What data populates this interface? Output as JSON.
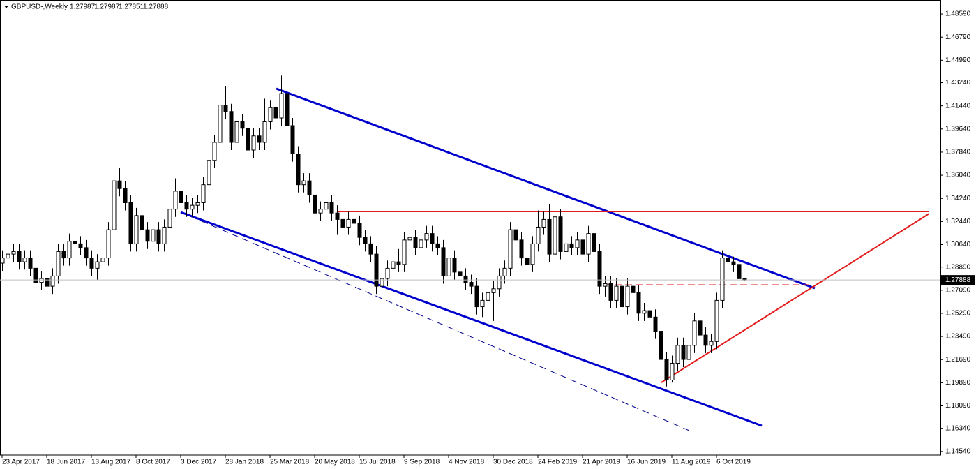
{
  "chart_data": {
    "type": "candlestick",
    "title": "GBPUSD-,Weekly",
    "categories": [
      "23 Apr 2017",
      null,
      null,
      null,
      null,
      null,
      null,
      null,
      "18 Jun 2017",
      null,
      null,
      null,
      null,
      null,
      null,
      null,
      "13 Aug 2017",
      null,
      null,
      null,
      null,
      null,
      null,
      null,
      "8 Oct 2017",
      null,
      null,
      null,
      null,
      null,
      null,
      null,
      "3 Dec 2017",
      null,
      null,
      null,
      null,
      null,
      null,
      null,
      "28 Jan 2018",
      null,
      null,
      null,
      null,
      null,
      null,
      null,
      "25 Mar 2018",
      null,
      null,
      null,
      null,
      null,
      null,
      null,
      "20 May 2018",
      null,
      null,
      null,
      null,
      null,
      null,
      null,
      "15 Jul 2018",
      null,
      null,
      null,
      null,
      null,
      null,
      null,
      "9 Sep 2018",
      null,
      null,
      null,
      null,
      null,
      null,
      null,
      "4 Nov 2018",
      null,
      null,
      null,
      null,
      null,
      null,
      null,
      "30 Dec 2018",
      null,
      null,
      null,
      null,
      null,
      null,
      null,
      "24 Feb 2019",
      null,
      null,
      null,
      null,
      null,
      null,
      null,
      "21 Apr 2019",
      null,
      null,
      null,
      null,
      null,
      null,
      null,
      "16 Jun 2019",
      null,
      null,
      null,
      null,
      null,
      null,
      null,
      "11 Aug 2019",
      null,
      null,
      null,
      null,
      null,
      null,
      null,
      "6 Oct 2019",
      null,
      null,
      null,
      null,
      null
    ],
    "open": [
      1.292,
      1.296,
      1.299,
      1.301,
      1.293,
      1.296,
      1.288,
      1.277,
      1.28,
      1.274,
      1.282,
      1.301,
      1.296,
      1.309,
      1.307,
      1.304,
      1.296,
      1.288,
      1.293,
      1.296,
      1.318,
      1.356,
      1.35,
      1.339,
      1.307,
      1.329,
      1.318,
      1.309,
      1.318,
      1.307,
      1.32,
      1.334,
      1.348,
      1.339,
      1.334,
      1.337,
      1.339,
      1.353,
      1.372,
      1.386,
      1.415,
      1.41,
      1.386,
      1.402,
      1.397,
      1.38,
      1.391,
      1.386,
      1.402,
      1.413,
      1.405,
      1.424,
      1.399,
      1.377,
      1.353,
      1.356,
      1.345,
      1.331,
      1.334,
      1.339,
      1.331,
      1.326,
      1.32,
      1.326,
      1.323,
      1.312,
      1.307,
      1.299,
      1.274,
      1.28,
      1.288,
      1.293,
      1.291,
      1.31,
      1.312,
      1.304,
      1.31,
      1.315,
      1.307,
      1.304,
      1.282,
      1.296,
      1.285,
      1.282,
      1.277,
      1.274,
      1.258,
      1.263,
      1.269,
      1.272,
      1.282,
      1.288,
      1.318,
      1.31,
      1.296,
      1.291,
      1.307,
      1.32,
      1.326,
      1.299,
      1.328,
      1.301,
      1.307,
      1.304,
      1.31,
      1.299,
      1.315,
      1.301,
      1.274,
      1.276,
      1.263,
      1.274,
      1.258,
      1.274,
      1.269,
      1.253,
      1.255,
      1.25,
      1.239,
      1.217,
      1.201,
      1.214,
      1.228,
      1.217,
      1.228,
      1.247,
      1.236,
      1.228,
      1.231,
      1.263,
      1.296,
      1.293,
      1.291,
      1.27987
    ],
    "high": [
      1.302,
      1.305,
      1.307,
      1.307,
      1.302,
      1.302,
      1.294,
      1.286,
      1.286,
      1.288,
      1.307,
      1.307,
      1.315,
      1.325,
      1.313,
      1.31,
      1.302,
      1.299,
      1.302,
      1.324,
      1.363,
      1.366,
      1.356,
      1.345,
      1.335,
      1.335,
      1.324,
      1.324,
      1.324,
      1.326,
      1.34,
      1.358,
      1.354,
      1.345,
      1.343,
      1.345,
      1.359,
      1.378,
      1.392,
      1.434,
      1.43,
      1.416,
      1.408,
      1.408,
      1.403,
      1.397,
      1.397,
      1.42,
      1.419,
      1.427,
      1.438,
      1.43,
      1.405,
      1.383,
      1.362,
      1.362,
      1.351,
      1.34,
      1.345,
      1.345,
      1.337,
      1.332,
      1.332,
      1.34,
      1.329,
      1.318,
      1.313,
      1.305,
      1.286,
      1.294,
      1.299,
      1.303,
      1.316,
      1.326,
      1.318,
      1.316,
      1.321,
      1.321,
      1.313,
      1.31,
      1.302,
      1.302,
      1.291,
      1.288,
      1.283,
      1.28,
      1.269,
      1.275,
      1.278,
      1.288,
      1.294,
      1.324,
      1.324,
      1.316,
      1.302,
      1.313,
      1.333,
      1.332,
      1.338,
      1.334,
      1.334,
      1.313,
      1.313,
      1.316,
      1.316,
      1.321,
      1.321,
      1.307,
      1.282,
      1.282,
      1.28,
      1.28,
      1.28,
      1.28,
      1.275,
      1.261,
      1.261,
      1.256,
      1.245,
      1.223,
      1.22,
      1.234,
      1.234,
      1.234,
      1.253,
      1.253,
      1.242,
      1.237,
      1.269,
      1.302,
      1.303,
      1.297,
      1.297,
      1.27987
    ],
    "low": [
      1.286,
      1.29,
      1.293,
      1.287,
      1.287,
      1.282,
      1.268,
      1.271,
      1.264,
      1.268,
      1.276,
      1.29,
      1.29,
      1.301,
      1.298,
      1.29,
      1.282,
      1.279,
      1.287,
      1.29,
      1.312,
      1.344,
      1.333,
      1.301,
      1.301,
      1.312,
      1.303,
      1.303,
      1.301,
      1.301,
      1.314,
      1.328,
      1.333,
      1.328,
      1.328,
      1.331,
      1.333,
      1.347,
      1.366,
      1.38,
      1.404,
      1.38,
      1.374,
      1.391,
      1.374,
      1.374,
      1.38,
      1.38,
      1.396,
      1.399,
      1.399,
      1.393,
      1.371,
      1.347,
      1.347,
      1.339,
      1.325,
      1.325,
      1.328,
      1.325,
      1.314,
      1.31,
      1.314,
      1.317,
      1.306,
      1.301,
      1.293,
      1.268,
      1.262,
      1.274,
      1.282,
      1.285,
      1.285,
      1.304,
      1.298,
      1.298,
      1.304,
      1.301,
      1.298,
      1.276,
      1.276,
      1.279,
      1.276,
      1.271,
      1.268,
      1.252,
      1.25,
      1.257,
      1.247,
      1.266,
      1.276,
      1.282,
      1.304,
      1.29,
      1.279,
      1.285,
      1.301,
      1.314,
      1.293,
      1.293,
      1.295,
      1.295,
      1.298,
      1.298,
      1.293,
      1.293,
      1.295,
      1.268,
      1.266,
      1.257,
      1.257,
      1.252,
      1.252,
      1.263,
      1.247,
      1.247,
      1.244,
      1.233,
      1.211,
      1.196,
      1.199,
      1.208,
      1.211,
      1.196,
      1.222,
      1.23,
      1.222,
      1.222,
      1.225,
      1.257,
      1.287,
      1.285,
      1.276,
      1.27851
    ],
    "close": [
      1.296,
      1.299,
      1.301,
      1.293,
      1.296,
      1.288,
      1.277,
      1.28,
      1.274,
      1.282,
      1.301,
      1.296,
      1.309,
      1.307,
      1.304,
      1.296,
      1.288,
      1.293,
      1.296,
      1.318,
      1.356,
      1.35,
      1.339,
      1.307,
      1.329,
      1.318,
      1.309,
      1.318,
      1.307,
      1.32,
      1.334,
      1.348,
      1.339,
      1.334,
      1.337,
      1.339,
      1.353,
      1.372,
      1.386,
      1.415,
      1.41,
      1.386,
      1.402,
      1.397,
      1.38,
      1.391,
      1.386,
      1.402,
      1.413,
      1.405,
      1.424,
      1.399,
      1.377,
      1.353,
      1.356,
      1.345,
      1.331,
      1.334,
      1.339,
      1.331,
      1.326,
      1.32,
      1.326,
      1.323,
      1.312,
      1.307,
      1.299,
      1.274,
      1.28,
      1.288,
      1.293,
      1.291,
      1.31,
      1.312,
      1.304,
      1.31,
      1.315,
      1.307,
      1.304,
      1.282,
      1.296,
      1.285,
      1.282,
      1.277,
      1.274,
      1.258,
      1.263,
      1.269,
      1.272,
      1.282,
      1.288,
      1.318,
      1.31,
      1.296,
      1.291,
      1.307,
      1.32,
      1.326,
      1.299,
      1.328,
      1.301,
      1.307,
      1.304,
      1.31,
      1.299,
      1.315,
      1.301,
      1.274,
      1.276,
      1.263,
      1.274,
      1.258,
      1.274,
      1.269,
      1.253,
      1.255,
      1.25,
      1.239,
      1.217,
      1.201,
      1.214,
      1.228,
      1.217,
      1.228,
      1.247,
      1.236,
      1.228,
      1.231,
      1.263,
      1.296,
      1.293,
      1.291,
      1.27987,
      1.27888
    ],
    "up_color": "#ffffff",
    "down_color": "#000000",
    "outline_color": "#000000",
    "ylim": [
      1.1426,
      1.4968
    ],
    "yticks": [
      {
        "value": 1.4859,
        "label": "1.48590"
      },
      {
        "value": 1.4679,
        "label": "1.46790"
      },
      {
        "value": 1.4499,
        "label": "1.44990"
      },
      {
        "value": 1.4324,
        "label": "1.43240"
      },
      {
        "value": 1.4144,
        "label": "1.41440"
      },
      {
        "value": 1.3964,
        "label": "1.39640"
      },
      {
        "value": 1.3784,
        "label": "1.37840"
      },
      {
        "value": 1.3604,
        "label": "1.36040"
      },
      {
        "value": 1.3424,
        "label": "1.34240"
      },
      {
        "value": 1.3244,
        "label": "1.32440"
      },
      {
        "value": 1.3064,
        "label": "1.30640"
      },
      {
        "value": 1.2889,
        "label": "1.28890"
      },
      {
        "value": 1.2709,
        "label": "1.27090"
      },
      {
        "value": 1.2529,
        "label": "1.25290"
      },
      {
        "value": 1.2349,
        "label": "1.23490"
      },
      {
        "value": 1.2169,
        "label": "1.21690"
      },
      {
        "value": 1.1989,
        "label": "1.19890"
      },
      {
        "value": 1.1809,
        "label": "1.18090"
      },
      {
        "value": 1.1634,
        "label": "1.16340"
      },
      {
        "value": 1.1454,
        "label": "1.14540"
      }
    ],
    "grid": false
  }
}
